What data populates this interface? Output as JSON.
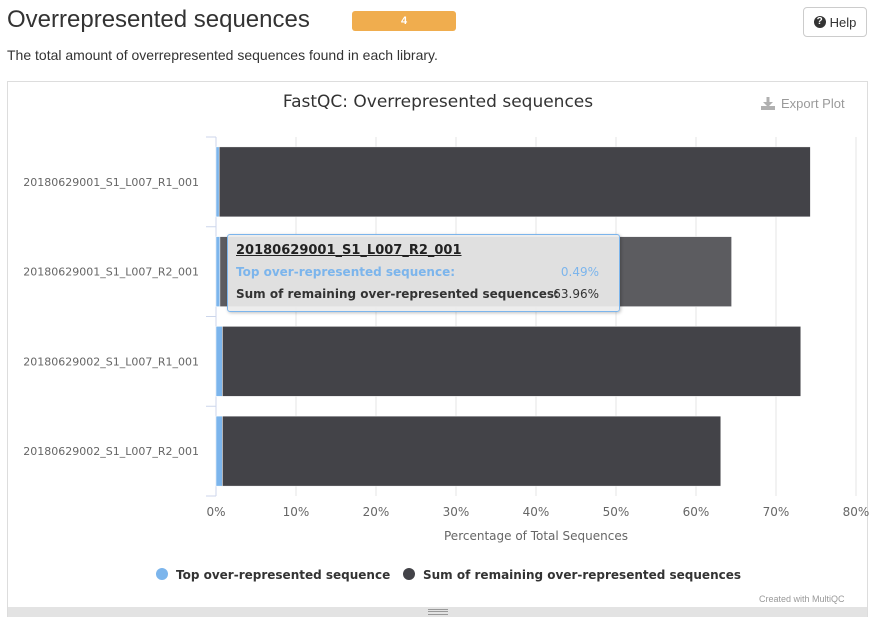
{
  "header": {
    "title": "Overrepresented sequences",
    "badge": "4",
    "help_label": "Help",
    "description": "The total amount of overrepresented sequences found in each library."
  },
  "plot": {
    "export_label": "Export Plot",
    "credit": "Created with MultiQC",
    "icons": {
      "export": "download-icon",
      "help": "question-circle-icon"
    }
  },
  "tooltip": {
    "title": "20180629001_S1_L007_R2_001",
    "rows": [
      {
        "label": "Top over-represented sequence:",
        "value": "0.49%"
      },
      {
        "label": "Sum of remaining over-represented sequences:",
        "value": "63.96%"
      }
    ]
  },
  "chart_data": {
    "type": "bar",
    "orientation": "horizontal",
    "stacked": true,
    "title": "FastQC: Overrepresented sequences",
    "xlabel": "Percentage of Total Sequences",
    "xlim": [
      0,
      80
    ],
    "xticks": [
      "0%",
      "10%",
      "20%",
      "30%",
      "40%",
      "50%",
      "60%",
      "70%",
      "80%"
    ],
    "grid": true,
    "legend_position": "bottom",
    "categories": [
      "20180629001_S1_L007_R1_001",
      "20180629001_S1_L007_R2_001",
      "20180629002_S1_L007_R1_001",
      "20180629002_S1_L007_R2_001"
    ],
    "series": [
      {
        "name": "Top over-represented sequence",
        "color": "#7cb5ec",
        "values": [
          0.4,
          0.49,
          0.8,
          0.8
        ]
      },
      {
        "name": "Sum of remaining over-represented sequences",
        "color": "#434348",
        "values": [
          73.9,
          63.96,
          72.3,
          62.3
        ]
      }
    ],
    "highlighted_category_index": 1
  }
}
